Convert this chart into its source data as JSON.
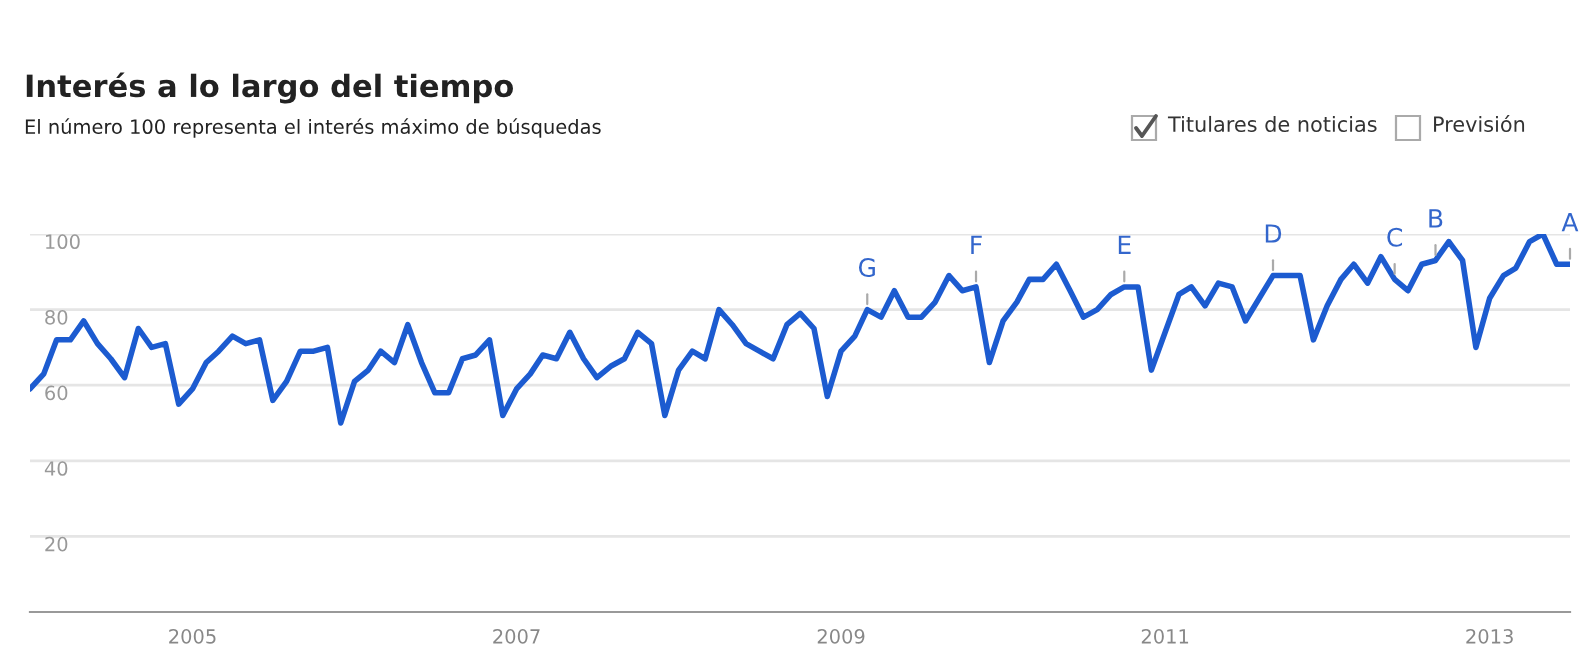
{
  "chart_data": {
    "type": "line",
    "title": "Interés a lo largo del tiempo",
    "subtitle": "El número 100 representa el interés máximo de búsquedas",
    "annotations": [
      "Titulares de noticias",
      "Previsión",
      {
        "text": "G",
        "x": "2009-03",
        "y": 80
      },
      {
        "text": "F",
        "x": "2009-11",
        "y": 86
      },
      {
        "text": "E",
        "x": "2010-10",
        "y": 86
      },
      {
        "text": "D",
        "x": "2011-09",
        "y": 89
      },
      {
        "text": "C",
        "x": "2012-06",
        "y": 88
      },
      {
        "text": "B",
        "x": "2012-09",
        "y": 93
      },
      {
        "text": "A",
        "x": "2013-07",
        "y": 92
      }
    ],
    "x": [
      "2004-01",
      "2004-02",
      "2004-03",
      "2004-04",
      "2004-05",
      "2004-06",
      "2004-07",
      "2004-08",
      "2004-09",
      "2004-10",
      "2004-11",
      "2004-12",
      "2005-01",
      "2005-02",
      "2005-03",
      "2005-04",
      "2005-05",
      "2005-06",
      "2005-07",
      "2005-08",
      "2005-09",
      "2005-10",
      "2005-11",
      "2005-12",
      "2006-01",
      "2006-02",
      "2006-03",
      "2006-04",
      "2006-05",
      "2006-06",
      "2006-07",
      "2006-08",
      "2006-09",
      "2006-10",
      "2006-11",
      "2006-12",
      "2007-01",
      "2007-02",
      "2007-03",
      "2007-04",
      "2007-05",
      "2007-06",
      "2007-07",
      "2007-08",
      "2007-09",
      "2007-10",
      "2007-11",
      "2007-12",
      "2008-01",
      "2008-02",
      "2008-03",
      "2008-04",
      "2008-05",
      "2008-06",
      "2008-07",
      "2008-08",
      "2008-09",
      "2008-10",
      "2008-11",
      "2008-12",
      "2009-01",
      "2009-02",
      "2009-03",
      "2009-04",
      "2009-05",
      "2009-06",
      "2009-07",
      "2009-08",
      "2009-09",
      "2009-10",
      "2009-11",
      "2009-12",
      "2010-01",
      "2010-02",
      "2010-03",
      "2010-04",
      "2010-05",
      "2010-06",
      "2010-07",
      "2010-08",
      "2010-09",
      "2010-10",
      "2010-11",
      "2010-12",
      "2011-01",
      "2011-02",
      "2011-03",
      "2011-04",
      "2011-05",
      "2011-06",
      "2011-07",
      "2011-08",
      "2011-09",
      "2011-10",
      "2011-11",
      "2011-12",
      "2012-01",
      "2012-02",
      "2012-03",
      "2012-04",
      "2012-05",
      "2012-06",
      "2012-07",
      "2012-08",
      "2012-09",
      "2012-10",
      "2012-11",
      "2012-12",
      "2013-01",
      "2013-02",
      "2013-03",
      "2013-04",
      "2013-05",
      "2013-06",
      "2013-07"
    ],
    "series": [
      {
        "color": "#1c5bd0",
        "values": [
          59,
          63,
          72,
          72,
          77,
          71,
          67,
          62,
          75,
          70,
          71,
          55,
          59,
          66,
          69,
          73,
          71,
          72,
          56,
          61,
          69,
          69,
          70,
          50,
          61,
          64,
          69,
          66,
          76,
          66,
          58,
          58,
          67,
          68,
          72,
          52,
          59,
          63,
          68,
          67,
          74,
          67,
          62,
          65,
          67,
          74,
          71,
          52,
          64,
          69,
          67,
          80,
          76,
          71,
          69,
          67,
          76,
          79,
          75,
          57,
          69,
          73,
          80,
          78,
          85,
          78,
          78,
          82,
          89,
          85,
          86,
          66,
          77,
          82,
          88,
          88,
          92,
          85,
          78,
          80,
          84,
          86,
          86,
          64,
          74,
          84,
          86,
          81,
          87,
          86,
          77,
          83,
          89,
          89,
          89,
          72,
          81,
          88,
          92,
          87,
          94,
          88,
          85,
          92,
          93,
          98,
          93,
          70,
          83,
          89,
          91,
          98,
          100,
          92,
          92
        ]
      }
    ],
    "xlim": [
      "2004-01",
      "2013-07"
    ],
    "xticks": [
      {
        "value": "2005-01",
        "label": "2005"
      },
      {
        "value": "2007-01",
        "label": "2007"
      },
      {
        "value": "2009-01",
        "label": "2009"
      },
      {
        "value": "2011-01",
        "label": "2011"
      },
      {
        "value": "2013-01",
        "label": "2013"
      }
    ],
    "ylim": [
      0,
      100
    ],
    "yticks": [
      20,
      40,
      60,
      80,
      100
    ],
    "grid": "y",
    "legend": false
  }
}
